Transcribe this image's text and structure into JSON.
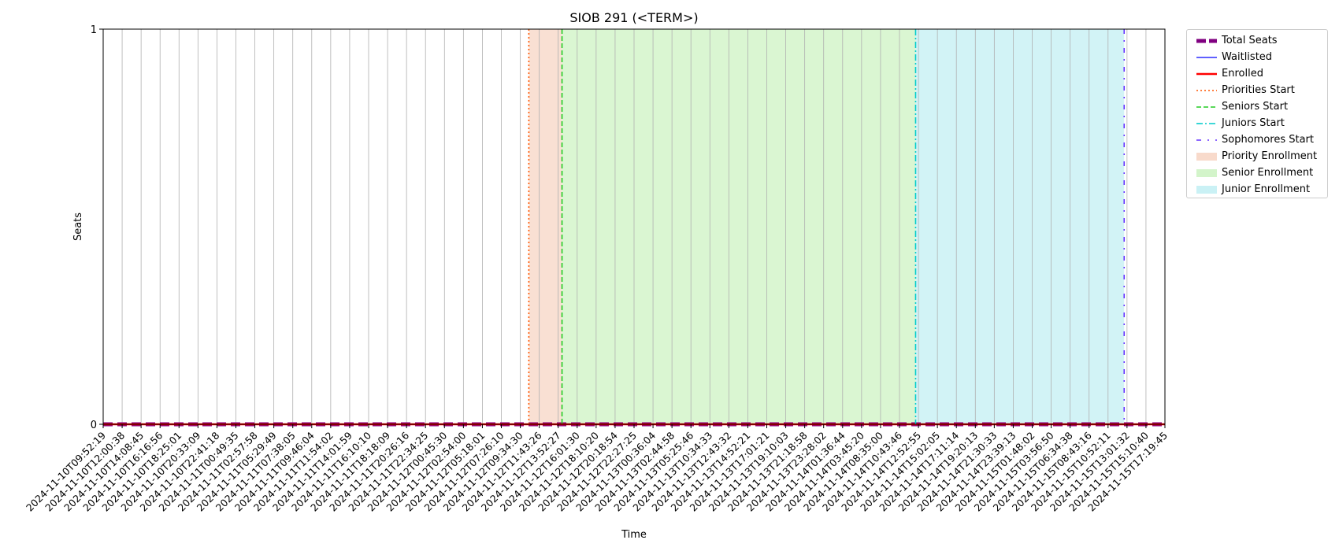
{
  "chart_data": {
    "type": "line",
    "title": "SIOB 291 (<TERM>)",
    "xlabel": "Time",
    "ylabel": "Seats",
    "ylim": [
      0,
      1
    ],
    "yticks": [
      "0",
      "1"
    ],
    "grid": "vertical",
    "legend_position": "outside-right",
    "x": [
      "2024-11-10T09:52:19",
      "2024-11-10T12:00:38",
      "2024-11-10T14:08:45",
      "2024-11-10T16:16:56",
      "2024-11-10T18:25:01",
      "2024-11-10T20:33:09",
      "2024-11-10T22:41:18",
      "2024-11-11T00:49:35",
      "2024-11-11T02:57:58",
      "2024-11-11T05:29:49",
      "2024-11-11T07:38:05",
      "2024-11-11T09:46:04",
      "2024-11-11T11:54:02",
      "2024-11-11T14:01:59",
      "2024-11-11T16:10:10",
      "2024-11-11T18:18:09",
      "2024-11-11T20:26:16",
      "2024-11-11T22:34:25",
      "2024-11-12T00:45:30",
      "2024-11-12T02:54:00",
      "2024-11-12T05:18:01",
      "2024-11-12T07:26:10",
      "2024-11-12T09:34:30",
      "2024-11-12T11:43:26",
      "2024-11-12T13:52:27",
      "2024-11-12T16:01:30",
      "2024-11-12T18:10:20",
      "2024-11-12T20:18:54",
      "2024-11-12T22:27:25",
      "2024-11-13T00:36:04",
      "2024-11-13T02:44:58",
      "2024-11-13T05:25:46",
      "2024-11-13T10:34:33",
      "2024-11-13T12:43:32",
      "2024-11-13T14:52:21",
      "2024-11-13T17:01:21",
      "2024-11-13T19:10:03",
      "2024-11-13T21:18:58",
      "2024-11-13T23:28:02",
      "2024-11-14T01:36:44",
      "2024-11-14T03:45:20",
      "2024-11-14T08:35:00",
      "2024-11-14T10:43:46",
      "2024-11-14T12:52:55",
      "2024-11-14T15:02:05",
      "2024-11-14T17:11:14",
      "2024-11-14T19:20:13",
      "2024-11-14T21:30:33",
      "2024-11-14T23:39:13",
      "2024-11-15T01:48:02",
      "2024-11-15T03:56:50",
      "2024-11-15T06:34:38",
      "2024-11-15T08:43:16",
      "2024-11-15T10:52:11",
      "2024-11-15T13:01:32",
      "2024-11-15T15:10:40",
      "2024-11-15T17:19:45"
    ],
    "series": [
      {
        "name": "Total Seats",
        "color": "#800080",
        "style": "dashed-thick",
        "values": [
          0,
          0,
          0,
          0,
          0,
          0,
          0,
          0,
          0,
          0,
          0,
          0,
          0,
          0,
          0,
          0,
          0,
          0,
          0,
          0,
          0,
          0,
          0,
          0,
          0,
          0,
          0,
          0,
          0,
          0,
          0,
          0,
          0,
          0,
          0,
          0,
          0,
          0,
          0,
          0,
          0,
          0,
          0,
          0,
          0,
          0,
          0,
          0,
          0,
          0,
          0,
          0,
          0,
          0,
          0,
          0,
          0
        ]
      },
      {
        "name": "Waitlisted",
        "color": "#0000ff",
        "style": "solid",
        "values": [
          0,
          0,
          0,
          0,
          0,
          0,
          0,
          0,
          0,
          0,
          0,
          0,
          0,
          0,
          0,
          0,
          0,
          0,
          0,
          0,
          0,
          0,
          0,
          0,
          0,
          0,
          0,
          0,
          0,
          0,
          0,
          0,
          0,
          0,
          0,
          0,
          0,
          0,
          0,
          0,
          0,
          0,
          0,
          0,
          0,
          0,
          0,
          0,
          0,
          0,
          0,
          0,
          0,
          0,
          0,
          0,
          0
        ]
      },
      {
        "name": "Enrolled",
        "color": "#ff0000",
        "style": "solid-thick",
        "values": [
          0,
          0,
          0,
          0,
          0,
          0,
          0,
          0,
          0,
          0,
          0,
          0,
          0,
          0,
          0,
          0,
          0,
          0,
          0,
          0,
          0,
          0,
          0,
          0,
          0,
          0,
          0,
          0,
          0,
          0,
          0,
          0,
          0,
          0,
          0,
          0,
          0,
          0,
          0,
          0,
          0,
          0,
          0,
          0,
          0,
          0,
          0,
          0,
          0,
          0,
          0,
          0,
          0,
          0,
          0,
          0,
          0
        ]
      }
    ],
    "markers": [
      {
        "name": "Priorities Start",
        "at_index": 22.45,
        "color": "#ff5500",
        "style": "dotted"
      },
      {
        "name": "Seniors Start",
        "at_index": 24.2,
        "color": "#22cc22",
        "style": "dashed"
      },
      {
        "name": "Juniors Start",
        "at_index": 42.85,
        "color": "#00cccc",
        "style": "dashdot"
      },
      {
        "name": "Sophomores Start",
        "at_index": 53.85,
        "color": "#6633ff",
        "style": "loose-dashdot"
      }
    ],
    "spans": [
      {
        "name": "Priority Enrollment",
        "from_index": 22.45,
        "to_index": 24.2,
        "color": "#f4c2a8"
      },
      {
        "name": "Senior Enrollment",
        "from_index": 24.2,
        "to_index": 42.85,
        "color": "#b6eda6"
      },
      {
        "name": "Junior Enrollment",
        "from_index": 42.85,
        "to_index": 53.85,
        "color": "#a6e8ee"
      }
    ],
    "legend": [
      "Total Seats",
      "Waitlisted",
      "Enrolled",
      "Priorities Start",
      "Seniors Start",
      "Juniors Start",
      "Sophomores Start",
      "Priority Enrollment",
      "Senior Enrollment",
      "Junior Enrollment"
    ]
  }
}
